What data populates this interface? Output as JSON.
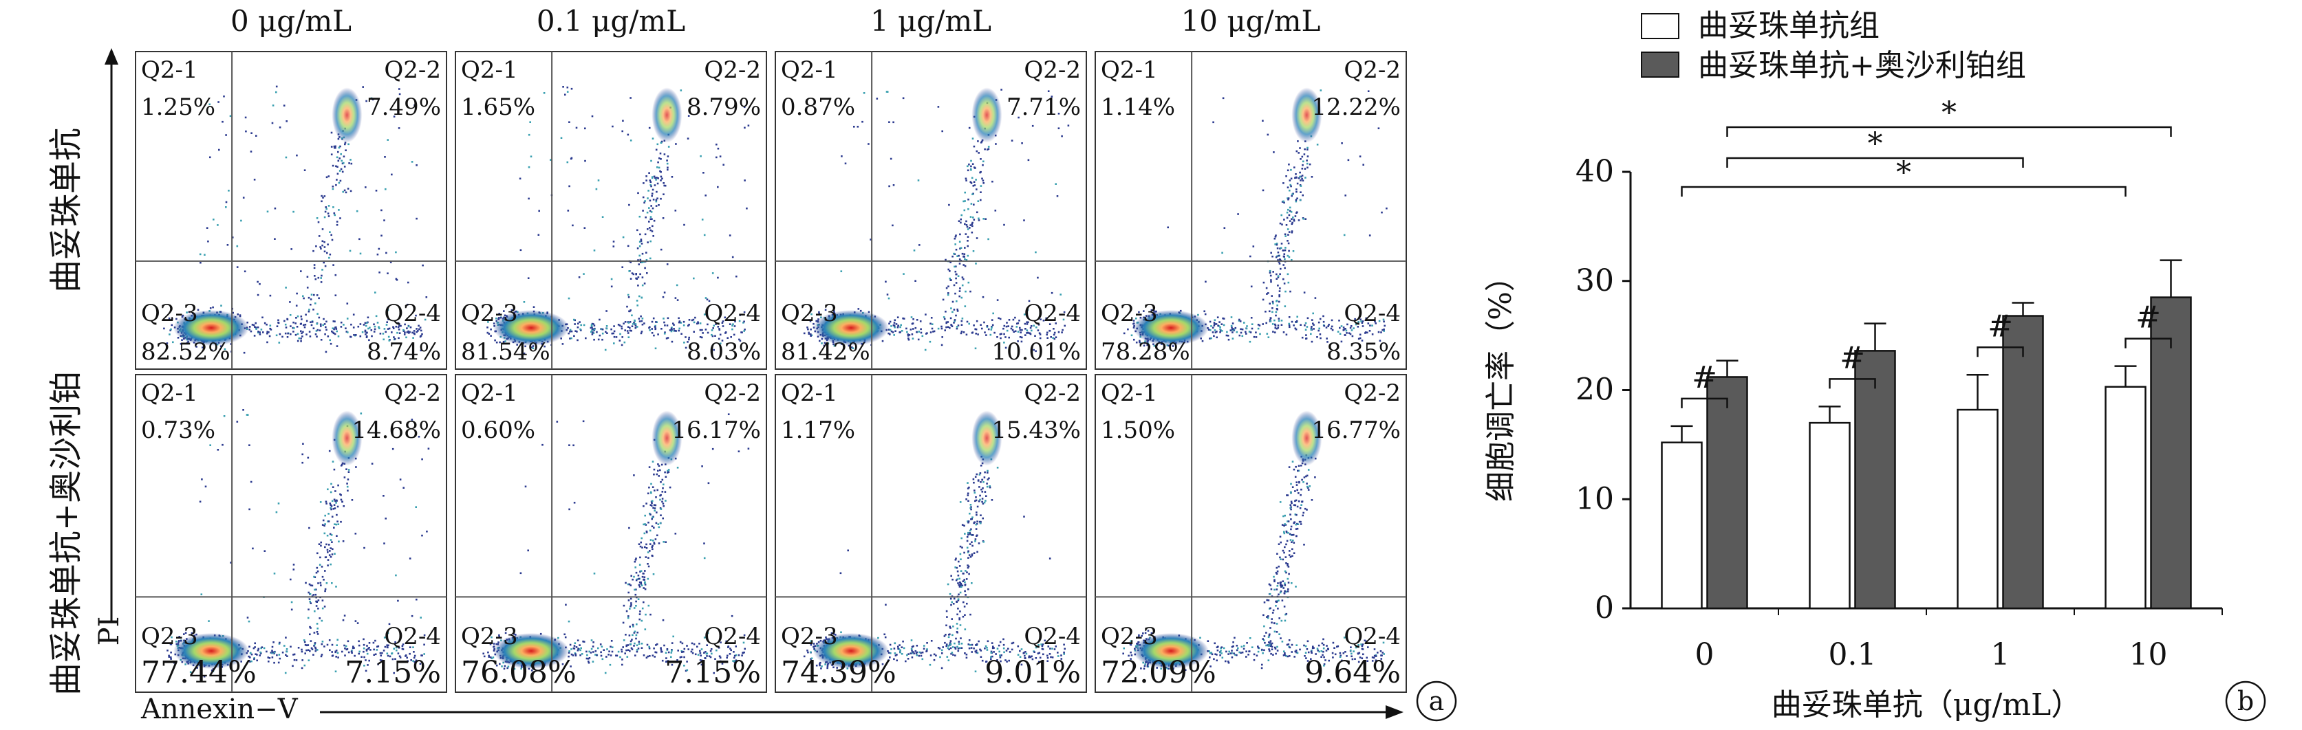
{
  "panel_a": {
    "letter": "a",
    "concentrations": [
      "0 μg/mL",
      "0.1 μg/mL",
      "1 μg/mL",
      "10 μg/mL"
    ],
    "row_labels": [
      "曲妥珠单抗",
      "曲妥珠单抗+奥沙利铂"
    ],
    "x_axis_label": "Annexin−V",
    "y_axis_label": "PI",
    "quadrant_names": [
      "Q2-1",
      "Q2-2",
      "Q2-3",
      "Q2-4"
    ],
    "plots": [
      [
        {
          "q1": "1.25%",
          "q2": "7.49%",
          "q3": "82.52%",
          "q4": "8.74%"
        },
        {
          "q1": "1.65%",
          "q2": "8.79%",
          "q3": "81.54%",
          "q4": "8.03%"
        },
        {
          "q1": "0.87%",
          "q2": "7.71%",
          "q3": "81.42%",
          "q4": "10.01%"
        },
        {
          "q1": "1.14%",
          "q2": "12.22%",
          "q3": "78.28%",
          "q4": "8.35%"
        }
      ],
      [
        {
          "q1": "0.73%",
          "q2": "14.68%",
          "q3": "77.44%",
          "q4": "7.15%"
        },
        {
          "q1": "0.60%",
          "q2": "16.17%",
          "q3": "76.08%",
          "q4": "7.15%"
        },
        {
          "q1": "1.17%",
          "q2": "15.43%",
          "q3": "74.39%",
          "q4": "9.01%"
        },
        {
          "q1": "1.50%",
          "q2": "16.77%",
          "q3": "72.09%",
          "q4": "9.64%"
        }
      ]
    ]
  },
  "chart_data": {
    "type": "bar",
    "categories": [
      "0",
      "0.1",
      "1",
      "10"
    ],
    "xlabel": "曲妥珠单抗（μg/mL）",
    "ylabel": "细胞调亡率（%）",
    "ylim": [
      0,
      40
    ],
    "yticks": [
      "0",
      "10",
      "20",
      "30",
      "40"
    ],
    "legend_position": "top",
    "series": [
      {
        "name": "曲妥珠单抗组",
        "color": "#ffffff",
        "values": [
          15.2,
          17.0,
          18.2,
          20.3
        ],
        "errors": [
          1.5,
          1.5,
          3.2,
          1.9
        ]
      },
      {
        "name": "曲妥珠单抗+奥沙利铂组",
        "color": "#5a5a5a",
        "values": [
          21.2,
          23.6,
          26.8,
          28.5
        ],
        "errors": [
          1.5,
          2.5,
          1.2,
          3.4
        ]
      }
    ],
    "annotations": {
      "hash": "#",
      "star": "*"
    },
    "letter": "b"
  }
}
